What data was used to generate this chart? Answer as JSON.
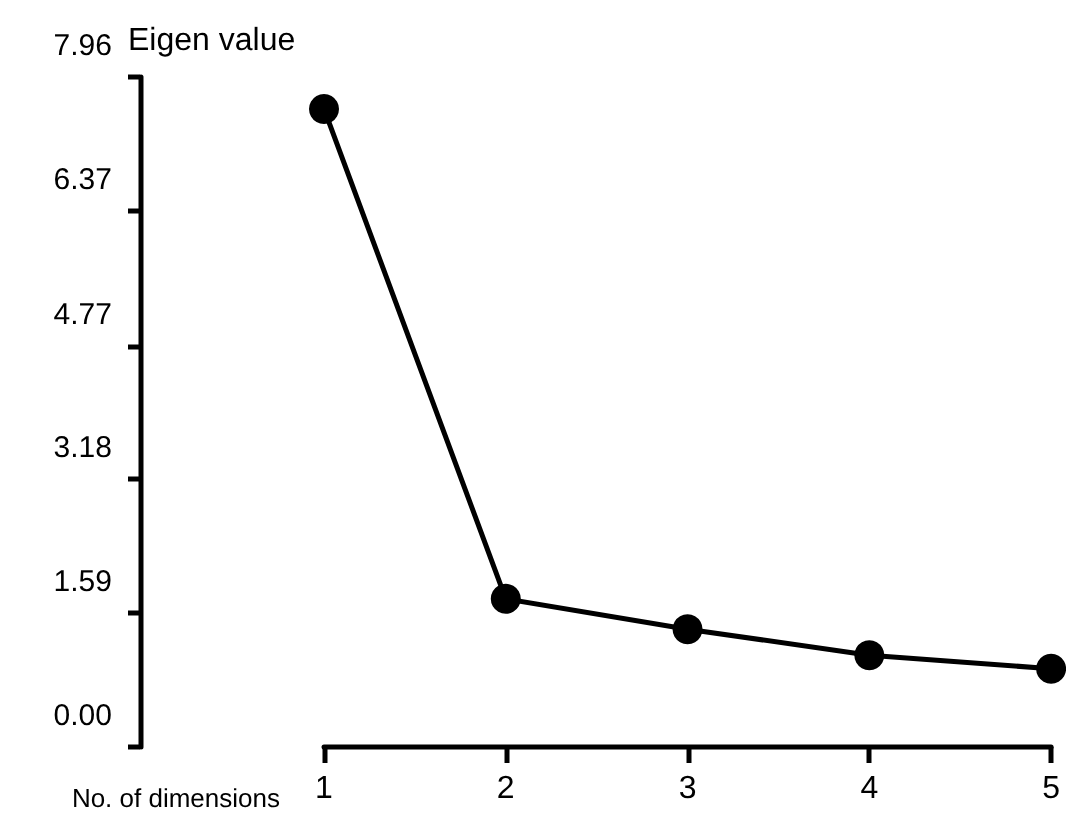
{
  "chart_data": {
    "type": "line",
    "xlabel": "No. of dimensions",
    "ylabel": "Eigen value",
    "x": [
      1,
      2,
      3,
      4,
      5
    ],
    "values": [
      7.58,
      1.76,
      1.4,
      1.09,
      0.93
    ],
    "color": "#000000",
    "xlim": [
      1,
      5
    ],
    "xticks": [
      1,
      2,
      3,
      4,
      5
    ],
    "ylim": [
      0,
      7.96
    ],
    "yticks": [
      {
        "value": 0,
        "label": "0.00"
      },
      {
        "value": 1.59,
        "label": "1.59"
      },
      {
        "value": 3.18,
        "label": "3.18"
      },
      {
        "value": 4.77,
        "label": "4.77"
      },
      {
        "value": 6.37,
        "label": "6.37"
      },
      {
        "value": 7.96,
        "label": "7.96"
      }
    ],
    "marker": "circle",
    "line_style": "solid",
    "grid": false
  }
}
